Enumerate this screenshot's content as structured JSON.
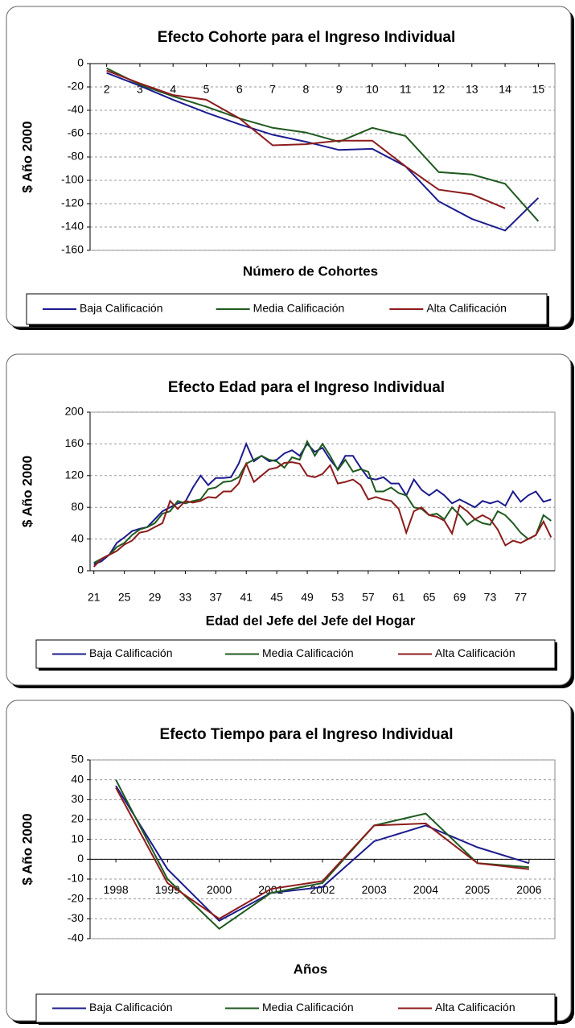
{
  "chart_data": [
    {
      "type": "line",
      "title": "Efecto Cohorte para el Ingreso Individual",
      "x_label": "Número de Cohortes",
      "y_label": "$ Año 2000",
      "categories": [
        "2",
        "3",
        "4",
        "5",
        "6",
        "7",
        "8",
        "9",
        "10",
        "11",
        "12",
        "13",
        "14",
        "15"
      ],
      "ylim": [
        -160,
        0
      ],
      "yticks": [
        -160,
        -140,
        -120,
        -100,
        -80,
        -60,
        -40,
        -20,
        0
      ],
      "grid": true,
      "series": [
        {
          "name": "Baja Calificación",
          "color": "#1c1c8e",
          "values": [
            -8,
            -19,
            -31,
            -42,
            -52,
            -61,
            -67,
            -74,
            -73,
            -88,
            -118,
            -133,
            -143,
            -115
          ]
        },
        {
          "name": "Media Calificación",
          "color": "#1f5a1f",
          "values": [
            -4,
            -18,
            -28,
            -37,
            -47,
            -55,
            -59,
            -67,
            -55,
            -62,
            -93,
            -95,
            -103,
            -135
          ]
        },
        {
          "name": "Alta Calificación",
          "color": "#8c1c1c",
          "values": [
            -6,
            -17,
            -27,
            -31,
            -47,
            -70,
            -69,
            -66,
            -66,
            -88,
            -108,
            -112,
            -124,
            null
          ]
        }
      ]
    },
    {
      "type": "line",
      "title": "Efecto Edad para el Ingreso Individual",
      "x_label": "Edad del Jefe del Jefe del Hogar",
      "y_label": "$ Año 2000",
      "categories": [
        "21",
        null,
        null,
        null,
        "25",
        null,
        null,
        null,
        "29",
        null,
        null,
        null,
        "33",
        null,
        null,
        null,
        "37",
        null,
        null,
        null,
        "41",
        null,
        null,
        null,
        "45",
        null,
        null,
        null,
        "49",
        null,
        null,
        null,
        "53",
        null,
        null,
        null,
        "57",
        null,
        null,
        null,
        "61",
        null,
        null,
        null,
        "65",
        null,
        null,
        null,
        "69",
        null,
        null,
        null,
        "73",
        null,
        null,
        null,
        "77",
        null,
        null,
        null,
        null
      ],
      "ylim": [
        0,
        200
      ],
      "yticks": [
        0,
        40,
        80,
        120,
        160,
        200
      ],
      "grid": true,
      "series": [
        {
          "name": "Baja Calificación",
          "color": "#1c1c8e",
          "values": [
            8,
            12,
            20,
            35,
            42,
            50,
            53,
            55,
            65,
            75,
            80,
            85,
            87,
            105,
            120,
            108,
            117,
            117,
            118,
            135,
            160,
            138,
            145,
            138,
            140,
            148,
            152,
            145,
            160,
            150,
            155,
            140,
            128,
            145,
            145,
            130,
            117,
            115,
            118,
            110,
            110,
            95,
            115,
            102,
            95,
            102,
            95,
            85,
            90,
            85,
            80,
            88,
            85,
            88,
            82,
            100,
            87,
            95,
            100,
            87,
            90
          ]
        },
        {
          "name": "Media Calificación",
          "color": "#1f5a1f",
          "values": [
            10,
            15,
            20,
            30,
            35,
            45,
            52,
            55,
            60,
            72,
            75,
            88,
            85,
            88,
            90,
            103,
            105,
            112,
            113,
            118,
            135,
            140,
            145,
            140,
            138,
            130,
            143,
            140,
            163,
            145,
            160,
            145,
            127,
            140,
            125,
            128,
            125,
            100,
            100,
            105,
            98,
            95,
            80,
            78,
            70,
            72,
            65,
            80,
            70,
            58,
            65,
            60,
            58,
            75,
            70,
            60,
            48,
            40,
            45,
            70,
            63
          ]
        },
        {
          "name": "Alta Calificación",
          "color": "#8c1c1c",
          "values": [
            5,
            15,
            20,
            25,
            33,
            38,
            48,
            50,
            55,
            60,
            88,
            78,
            88,
            86,
            88,
            93,
            92,
            100,
            100,
            110,
            135,
            112,
            120,
            128,
            130,
            136,
            137,
            135,
            120,
            118,
            122,
            133,
            110,
            112,
            115,
            108,
            90,
            93,
            90,
            88,
            78,
            48,
            75,
            80,
            70,
            68,
            63,
            47,
            82,
            75,
            65,
            70,
            65,
            52,
            32,
            38,
            35,
            40,
            45,
            62,
            42
          ]
        }
      ]
    },
    {
      "type": "line",
      "title": "Efecto Tiempo para el Ingreso Individual",
      "x_label": "Años",
      "y_label": "$ Año 2000",
      "categories": [
        "1998",
        "1999",
        "2000",
        "2001",
        "2002",
        "2003",
        "2004",
        "2005",
        "2006"
      ],
      "ylim": [
        -40,
        50
      ],
      "yticks": [
        -40,
        -30,
        -20,
        -10,
        0,
        10,
        20,
        30,
        40,
        50
      ],
      "grid": true,
      "series": [
        {
          "name": "Baja Calificación",
          "color": "#1c1c8e",
          "values": [
            37,
            -5,
            -31,
            -17,
            -14,
            9,
            17,
            6,
            -2
          ]
        },
        {
          "name": "Media Calificación",
          "color": "#1f5a1f",
          "values": [
            40,
            -10,
            -35,
            -17,
            -12,
            17,
            23,
            -2,
            -4
          ]
        },
        {
          "name": "Alta Calificación",
          "color": "#8c1c1c",
          "values": [
            36,
            -12,
            -30,
            -15,
            -11,
            17,
            18,
            -2,
            -5
          ]
        }
      ]
    }
  ]
}
